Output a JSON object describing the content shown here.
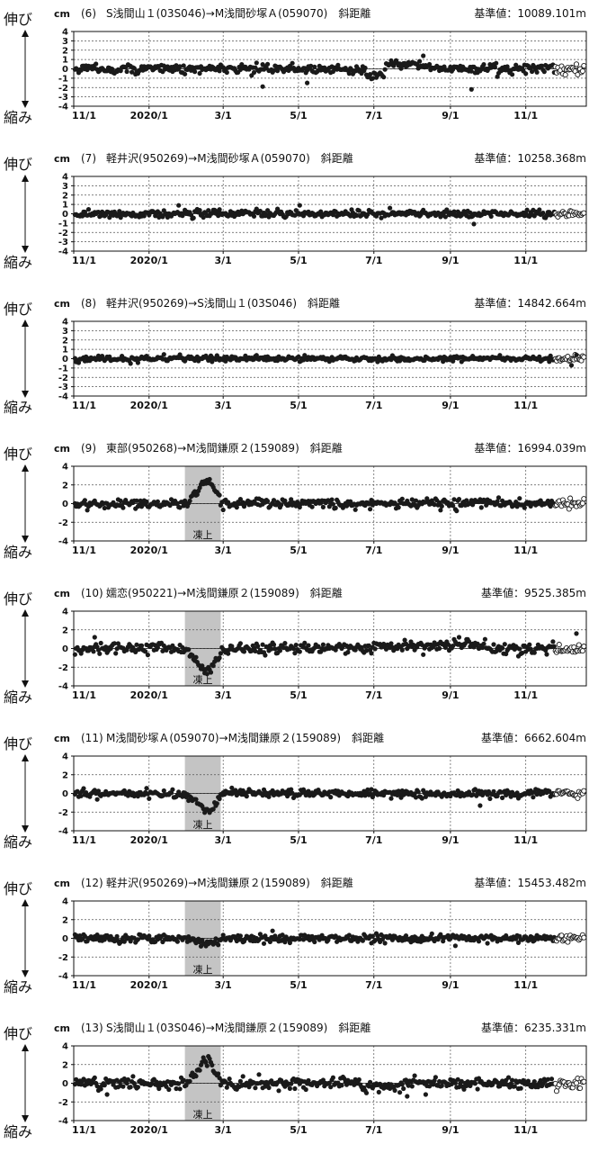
{
  "side_label_top": "伸び",
  "side_label_bottom": "縮み",
  "unit": "cm",
  "frost_label": "凍上",
  "x_ticks": [
    "11/1",
    "2020/1",
    "3/1",
    "5/1",
    "7/1",
    "9/1",
    "11/1"
  ],
  "colors": {
    "point": "#1a1a1a",
    "open_point": "#ffffff",
    "frost": "#c4c4c4",
    "grid": "#555555"
  },
  "chart_data": [
    {
      "type": "scatter",
      "number": "(6)",
      "title": "S浅間山１(03S046)→M浅間砂塚Ａ(059070)　斜距離",
      "reference": "基準値：10089.101m",
      "ylabel": "cm",
      "yticks": [
        4,
        3,
        2,
        1,
        0,
        -1,
        -2,
        -3,
        -4
      ],
      "ylim": [
        -4,
        4
      ],
      "xlim": [
        "2019-11-01",
        "2020-12-20"
      ],
      "frost_heave": null,
      "anomalies": [
        {
          "from": "2020-06-25",
          "to": "2020-07-10",
          "dy": -0.8
        },
        {
          "from": "2020-07-10",
          "to": "2020-08-15",
          "dy": 0.5
        }
      ],
      "outliers": [
        {
          "x": "2020-04-02",
          "y": -1.9
        },
        {
          "x": "2020-05-08",
          "y": -1.5
        },
        {
          "x": "2020-09-18",
          "y": -2.2
        },
        {
          "x": "2020-08-10",
          "y": 1.4
        }
      ],
      "noise": 0.25,
      "provisional_from": "2020-11-25"
    },
    {
      "type": "scatter",
      "number": "(7)",
      "title": "軽井沢(950269)→M浅間砂塚Ａ(059070)　斜距離",
      "reference": "基準値：10258.368m",
      "ylabel": "cm",
      "yticks": [
        4,
        3,
        2,
        1,
        0,
        -1,
        -2,
        -3,
        -4
      ],
      "ylim": [
        -4,
        4
      ],
      "xlim": [
        "2019-11-01",
        "2020-12-20"
      ],
      "frost_heave": null,
      "anomalies": [],
      "outliers": [
        {
          "x": "2020-01-25",
          "y": 0.9
        },
        {
          "x": "2020-05-02",
          "y": 0.9
        },
        {
          "x": "2020-09-20",
          "y": -1.1
        }
      ],
      "noise": 0.2,
      "provisional_from": "2020-11-25"
    },
    {
      "type": "scatter",
      "number": "(8)",
      "title": "軽井沢(950269)→S浅間山１(03S046)　斜距離",
      "reference": "基準値：14842.664m",
      "ylabel": "cm",
      "yticks": [
        4,
        3,
        2,
        1,
        0,
        -1,
        -2,
        -3,
        -4
      ],
      "ylim": [
        -4,
        4
      ],
      "xlim": [
        "2019-11-01",
        "2020-12-20"
      ],
      "frost_heave": null,
      "anomalies": [],
      "outliers": [
        {
          "x": "2020-12-08",
          "y": -0.7
        },
        {
          "x": "2020-12-12",
          "y": 0.4
        }
      ],
      "noise": 0.15,
      "provisional_from": "2020-11-25"
    },
    {
      "type": "scatter",
      "number": "(9)",
      "title": "東部(950268)→M浅間鎌原２(159089)　斜距離",
      "reference": "基準値：16994.039m",
      "ylabel": "cm",
      "yticks": [
        4,
        2,
        0,
        -2,
        -4
      ],
      "ylim": [
        -4,
        4
      ],
      "xlim": [
        "2019-11-01",
        "2020-12-20"
      ],
      "frost_heave": {
        "from": "2020-01-30",
        "to": "2020-02-28",
        "peak": 2.4,
        "label": "凍上"
      },
      "anomalies": [],
      "outliers": [
        {
          "x": "2020-06-28",
          "y": -0.6
        }
      ],
      "noise": 0.25,
      "provisional_from": "2020-11-25"
    },
    {
      "type": "scatter",
      "number": "(10)",
      "title": "嬬恋(950221)→M浅間鎌原２(159089)　斜距離",
      "reference": "基準値：9525.385m",
      "ylabel": "cm",
      "yticks": [
        4,
        2,
        0,
        -2,
        -4
      ],
      "ylim": [
        -4,
        4
      ],
      "xlim": [
        "2019-11-01",
        "2020-12-20"
      ],
      "frost_heave": {
        "from": "2020-01-30",
        "to": "2020-02-28",
        "peak": -2.4,
        "label": "凍上"
      },
      "anomalies": [
        {
          "from": "2020-07-01",
          "to": "2020-09-30",
          "dy": 0.3
        }
      ],
      "outliers": [
        {
          "x": "2019-11-18",
          "y": 1.2
        },
        {
          "x": "2020-09-08",
          "y": 1.2
        },
        {
          "x": "2020-12-12",
          "y": 1.6
        }
      ],
      "noise": 0.3,
      "provisional_from": "2020-11-25"
    },
    {
      "type": "scatter",
      "number": "(11)",
      "title": "M浅間砂塚Ａ(059070)→M浅間鎌原２(159089)　斜距離",
      "reference": "基準値：6662.604m",
      "ylabel": "cm",
      "yticks": [
        4,
        2,
        0,
        -2,
        -4
      ],
      "ylim": [
        -4,
        4
      ],
      "xlim": [
        "2019-11-01",
        "2020-12-20"
      ],
      "frost_heave": {
        "from": "2020-01-30",
        "to": "2020-02-28",
        "peak": -1.8,
        "label": "凍上"
      },
      "anomalies": [],
      "outliers": [
        {
          "x": "2020-03-08",
          "y": 0.6
        },
        {
          "x": "2020-09-25",
          "y": -1.3
        }
      ],
      "noise": 0.22,
      "provisional_from": "2020-11-25"
    },
    {
      "type": "scatter",
      "number": "(12)",
      "title": "軽井沢(950269)→M浅間鎌原２(159089)　斜距離",
      "reference": "基準値：15453.482m",
      "ylabel": "cm",
      "yticks": [
        4,
        2,
        0,
        -2,
        -4
      ],
      "ylim": [
        -4,
        4
      ],
      "xlim": [
        "2019-11-01",
        "2020-12-20"
      ],
      "frost_heave": {
        "from": "2020-01-30",
        "to": "2020-02-28",
        "peak": -0.5,
        "label": "凍上"
      },
      "anomalies": [],
      "outliers": [
        {
          "x": "2020-04-10",
          "y": 0.8
        },
        {
          "x": "2020-09-05",
          "y": -0.8
        }
      ],
      "noise": 0.22,
      "provisional_from": "2020-11-25"
    },
    {
      "type": "scatter",
      "number": "(13)",
      "title": "S浅間山１(03S046)→M浅間鎌原２(159089)　斜距離",
      "reference": "基準値：6235.331m",
      "ylabel": "cm",
      "yticks": [
        4,
        2,
        0,
        -2,
        -4
      ],
      "ylim": [
        -4,
        4
      ],
      "xlim": [
        "2019-11-01",
        "2020-12-20"
      ],
      "frost_heave": {
        "from": "2020-01-30",
        "to": "2020-02-28",
        "peak": 2.2,
        "label": "凍上"
      },
      "anomalies": [
        {
          "from": "2020-06-20",
          "to": "2020-07-25",
          "dy": -0.4
        }
      ],
      "outliers": [
        {
          "x": "2019-11-28",
          "y": -1.2
        },
        {
          "x": "2020-07-28",
          "y": -1.4
        },
        {
          "x": "2020-08-12",
          "y": -1.2
        }
      ],
      "noise": 0.3,
      "provisional_from": "2020-11-25"
    }
  ]
}
